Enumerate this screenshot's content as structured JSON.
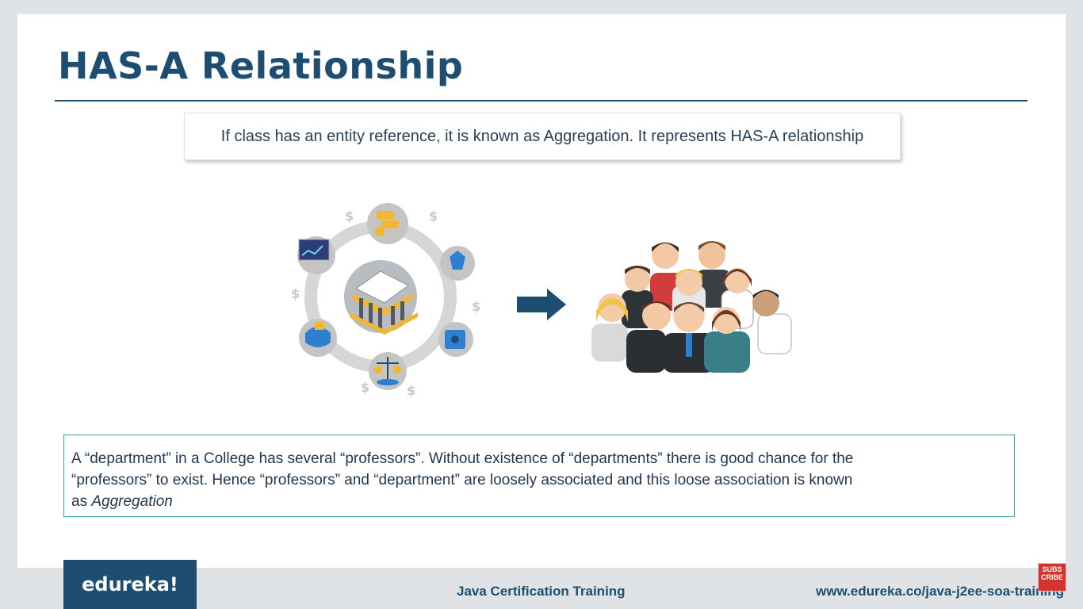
{
  "slide": {
    "title": "HAS-A Relationship",
    "definition": "If class has an entity reference, it is known as Aggregation. It represents HAS-A relationship",
    "description": {
      "line1": "A  “department” in a College has several “professors”. Without existence of “departments” there is good chance for the",
      "line2": "“professors” to exist. Hence “professors” and “department” are loosely associated and this loose association is known",
      "line3_prefix": "as ",
      "line3_emphasis": "Aggregation"
    }
  },
  "icons": {
    "bank": "bank-finance-icon",
    "arrow": "right-arrow-icon",
    "people": "group-of-people-icon",
    "subscribe": "subscribe-icon"
  },
  "footer": {
    "logo": "edureka!",
    "course": "Java Certification Training",
    "url": "www.edureka.co/java-j2ee-soa-training",
    "subscribe_lines": [
      "SUBS",
      "CRIBE"
    ]
  },
  "colors": {
    "title": "#1d4e72",
    "box_border": "#34a99d",
    "arrow": "#1d4e72",
    "subscribe": "#d1332e"
  }
}
